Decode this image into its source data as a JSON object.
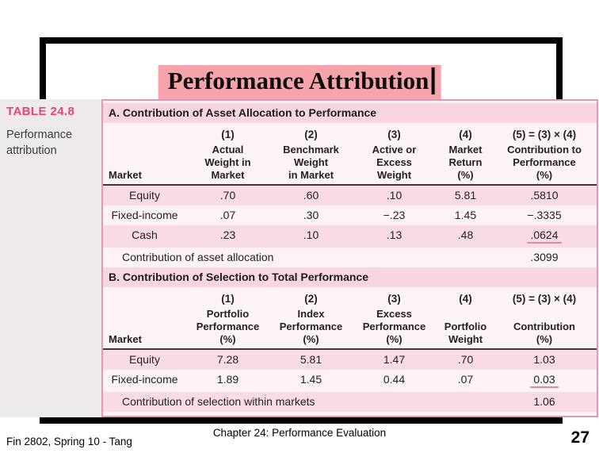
{
  "slide": {
    "title": "Performance Attribution",
    "footer_left": "Fin 2802, Spring 10 - Tang",
    "footer_center": "Chapter 24: Performance Evaluation",
    "page_number": "27"
  },
  "colors": {
    "title_highlight": "#f7a3ac",
    "table_label_pink": "#e8437e",
    "row_pink": "#f9dbe5",
    "row_light": "#fdf3f6",
    "section_header_pink": "#f8d6e1",
    "table_border": "#dd9ab2",
    "underline_pink": "#dd8aa6",
    "frame_black": "#000000"
  },
  "table": {
    "label": "TABLE 24.8",
    "caption": "Performance attribution",
    "sections": [
      {
        "title": "A. Contribution of Asset Allocation to Performance",
        "col_numbers": [
          "(1)",
          "(2)",
          "(3)",
          "(4)",
          "(5) = (3) × (4)"
        ],
        "headers": [
          "Market",
          "Actual\nWeight in\nMarket",
          "Benchmark\nWeight\nin Market",
          "Active or\nExcess\nWeight",
          "Market\nReturn\n(%)",
          "Contribution to\nPerformance\n(%)"
        ],
        "rows": [
          {
            "cells": [
              "Equity",
              ".70",
              ".60",
              ".10",
              "5.81",
              ".5810"
            ],
            "shaded": true,
            "underline_last": false
          },
          {
            "cells": [
              "Fixed-income",
              ".07",
              ".30",
              "−.23",
              "1.45",
              "−.3335"
            ],
            "shaded": false,
            "underline_last": false
          },
          {
            "cells": [
              "Cash",
              ".23",
              ".10",
              ".13",
              ".48",
              ".0624"
            ],
            "shaded": true,
            "underline_last": true
          }
        ],
        "total": {
          "label": "Contribution of asset allocation",
          "value": ".3099",
          "shaded": false
        }
      },
      {
        "title": "B. Contribution of Selection to Total Performance",
        "col_numbers": [
          "(1)",
          "(2)",
          "(3)",
          "(4)",
          "(5) = (3) × (4)"
        ],
        "headers": [
          "Market",
          "Portfolio\nPerformance\n(%)",
          "Index\nPerformance\n(%)",
          "Excess\nPerformance\n(%)",
          "Portfolio\nWeight",
          "Contribution\n(%)"
        ],
        "rows": [
          {
            "cells": [
              "Equity",
              "7.28",
              "5.81",
              "1.47",
              ".70",
              "1.03"
            ],
            "shaded": true,
            "underline_last": false
          },
          {
            "cells": [
              "Fixed-income",
              "1.89",
              "1.45",
              "0.44",
              ".07",
              "0.03"
            ],
            "shaded": false,
            "underline_last": true
          }
        ],
        "total": {
          "label": "Contribution of selection within markets",
          "value": "1.06",
          "shaded": true
        }
      }
    ]
  }
}
